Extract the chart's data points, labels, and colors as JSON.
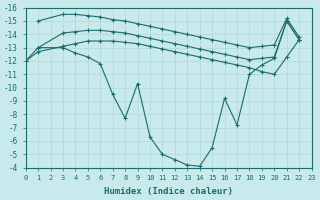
{
  "xlabel": "Humidex (Indice chaleur)",
  "bg_color": "#c8eaea",
  "grid_color": "#b0d8d8",
  "line_color": "#1a6b6b",
  "xlim": [
    0,
    23
  ],
  "ylim": [
    -16,
    -4
  ],
  "xticks": [
    0,
    1,
    2,
    3,
    4,
    5,
    6,
    7,
    8,
    9,
    10,
    11,
    12,
    13,
    14,
    15,
    16,
    17,
    18,
    19,
    20,
    21,
    22,
    23
  ],
  "yticks": [
    -4,
    -5,
    -6,
    -7,
    -8,
    -9,
    -10,
    -11,
    -12,
    -13,
    -14,
    -15,
    -16
  ],
  "series": [
    {
      "x": [
        0,
        1,
        3,
        4,
        5,
        6,
        7,
        8,
        9,
        10,
        11,
        12,
        13,
        14,
        15,
        16,
        17,
        18,
        19,
        20,
        21,
        22
      ],
      "y": [
        -12.0,
        -13.0,
        -13.0,
        -12.6,
        -12.3,
        -11.8,
        -9.5,
        -7.7,
        -10.3,
        -6.3,
        -5.0,
        -4.6,
        -4.2,
        -4.1,
        -5.5,
        -9.2,
        -7.2,
        -11.0,
        -11.7,
        -12.2,
        -15.0,
        -13.6
      ]
    },
    {
      "x": [
        0,
        1,
        3,
        4,
        5,
        6,
        7,
        8,
        9,
        10,
        11,
        12,
        13,
        14,
        15,
        16,
        17,
        18,
        19,
        20,
        21,
        22
      ],
      "y": [
        -12.0,
        -12.7,
        -13.1,
        -13.3,
        -13.5,
        -13.5,
        -13.5,
        -13.4,
        -13.3,
        -13.1,
        -12.9,
        -12.7,
        -12.5,
        -12.3,
        -12.1,
        -11.9,
        -11.7,
        -11.5,
        -11.2,
        -11.0,
        -12.3,
        -13.6
      ]
    },
    {
      "x": [
        1,
        3,
        4,
        5,
        6,
        7,
        8,
        9,
        10,
        11,
        12,
        13,
        14,
        15,
        16,
        17,
        18,
        19,
        20,
        21,
        22
      ],
      "y": [
        -13.0,
        -14.1,
        -14.2,
        -14.3,
        -14.3,
        -14.2,
        -14.1,
        -13.9,
        -13.7,
        -13.5,
        -13.3,
        -13.1,
        -12.9,
        -12.7,
        -12.5,
        -12.3,
        -12.1,
        -12.2,
        -12.3,
        -15.0,
        -13.6
      ]
    },
    {
      "x": [
        1,
        3,
        4,
        5,
        6,
        7,
        8,
        9,
        10,
        11,
        12,
        13,
        14,
        15,
        16,
        17,
        18,
        19,
        20,
        21,
        22
      ],
      "y": [
        -15.0,
        -15.5,
        -15.5,
        -15.4,
        -15.3,
        -15.1,
        -15.0,
        -14.8,
        -14.6,
        -14.4,
        -14.2,
        -14.0,
        -13.8,
        -13.6,
        -13.4,
        -13.2,
        -13.0,
        -13.1,
        -13.2,
        -15.2,
        -13.8
      ]
    }
  ]
}
